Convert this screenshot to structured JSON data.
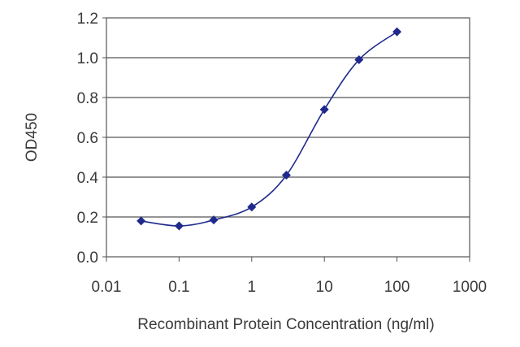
{
  "chart_data": {
    "type": "line",
    "title": "",
    "xlabel": "Recombinant Protein Concentration (ng/ml)",
    "ylabel": "OD450",
    "x_scale": "log",
    "xlim": [
      0.01,
      1000
    ],
    "ylim": [
      0,
      1.2
    ],
    "x_ticks": [
      0.01,
      0.1,
      1,
      10,
      100,
      1000
    ],
    "x_tick_labels": [
      "0.01",
      "0.1",
      "1",
      "10",
      "100",
      "1000"
    ],
    "y_ticks": [
      0,
      0.2,
      0.4,
      0.6,
      0.8,
      1.0,
      1.2
    ],
    "y_tick_labels": [
      "0.0",
      "0.2",
      "0.4",
      "0.6",
      "0.8",
      "1.0",
      "1.2"
    ],
    "grid": "horizontal",
    "legend": "none",
    "series": [
      {
        "color": "#1f2a8c",
        "marker": "diamond",
        "x": [
          0.03,
          0.1,
          0.3,
          1,
          3,
          10,
          30,
          100
        ],
        "y": [
          0.18,
          0.155,
          0.185,
          0.25,
          0.41,
          0.74,
          0.99,
          1.13
        ]
      }
    ]
  }
}
